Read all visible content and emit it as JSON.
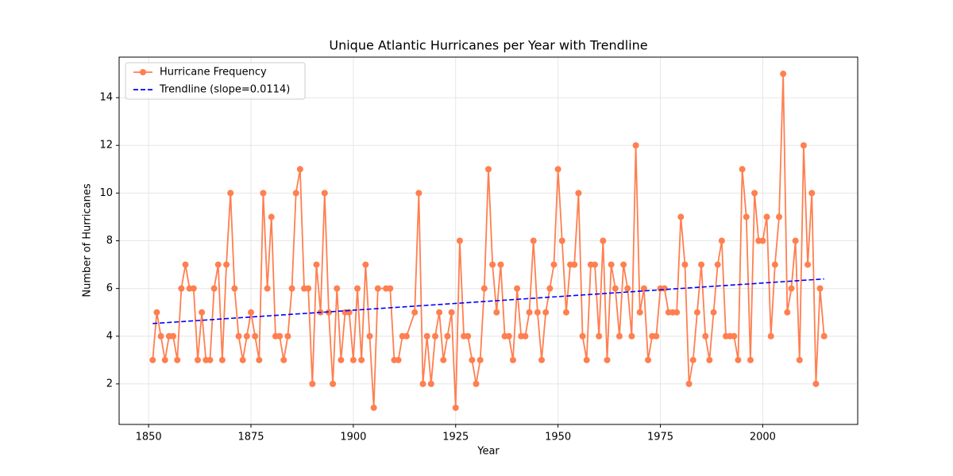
{
  "chart_data": {
    "type": "line",
    "title": "Unique Atlantic Hurricanes per Year with Trendline",
    "x_label": "Year",
    "y_label": "Number of Hurricanes",
    "series": [
      {
        "name": "Hurricane Frequency",
        "color": "#ff7f50",
        "marker": "circle",
        "style": "solid",
        "x": [
          1851,
          1852,
          1853,
          1854,
          1855,
          1856,
          1857,
          1858,
          1859,
          1860,
          1861,
          1862,
          1863,
          1864,
          1865,
          1866,
          1867,
          1868,
          1869,
          1870,
          1871,
          1872,
          1873,
          1874,
          1875,
          1876,
          1877,
          1878,
          1879,
          1880,
          1881,
          1882,
          1883,
          1884,
          1885,
          1886,
          1887,
          1888,
          1889,
          1890,
          1891,
          1892,
          1893,
          1894,
          1895,
          1896,
          1897,
          1898,
          1899,
          1900,
          1901,
          1902,
          1903,
          1904,
          1905,
          1906,
          1908,
          1909,
          1910,
          1911,
          1912,
          1913,
          1915,
          1916,
          1917,
          1918,
          1919,
          1920,
          1921,
          1922,
          1923,
          1924,
          1925,
          1926,
          1927,
          1928,
          1929,
          1930,
          1931,
          1932,
          1933,
          1934,
          1935,
          1936,
          1937,
          1938,
          1939,
          1940,
          1941,
          1942,
          1943,
          1944,
          1945,
          1946,
          1947,
          1948,
          1949,
          1950,
          1951,
          1952,
          1953,
          1954,
          1955,
          1956,
          1957,
          1958,
          1959,
          1960,
          1961,
          1962,
          1963,
          1964,
          1965,
          1966,
          1967,
          1968,
          1969,
          1970,
          1971,
          1972,
          1973,
          1974,
          1975,
          1976,
          1977,
          1978,
          1979,
          1980,
          1981,
          1982,
          1983,
          1984,
          1985,
          1986,
          1987,
          1988,
          1989,
          1990,
          1991,
          1992,
          1993,
          1994,
          1995,
          1996,
          1997,
          1998,
          1999,
          2000,
          2001,
          2002,
          2003,
          2004,
          2005,
          2006,
          2007,
          2008,
          2009,
          2010,
          2011,
          2012,
          2013,
          2014,
          2015
        ],
        "values": [
          3,
          5,
          4,
          3,
          4,
          4,
          3,
          6,
          7,
          6,
          6,
          3,
          5,
          3,
          3,
          6,
          7,
          3,
          7,
          10,
          6,
          4,
          3,
          4,
          5,
          4,
          3,
          10,
          6,
          9,
          4,
          4,
          3,
          4,
          6,
          10,
          11,
          6,
          6,
          2,
          7,
          5,
          10,
          5,
          2,
          6,
          3,
          5,
          5,
          3,
          6,
          3,
          7,
          4,
          1,
          6,
          6,
          6,
          3,
          3,
          4,
          4,
          5,
          10,
          2,
          4,
          2,
          4,
          5,
          3,
          4,
          5,
          1,
          8,
          4,
          4,
          3,
          2,
          3,
          6,
          11,
          7,
          5,
          7,
          4,
          4,
          3,
          6,
          4,
          4,
          5,
          8,
          5,
          3,
          5,
          6,
          7,
          11,
          8,
          5,
          7,
          7,
          10,
          4,
          3,
          7,
          7,
          4,
          8,
          3,
          7,
          6,
          4,
          7,
          6,
          4,
          12,
          5,
          6,
          3,
          4,
          4,
          6,
          6,
          5,
          5,
          5,
          9,
          7,
          2,
          3,
          5,
          7,
          4,
          3,
          5,
          7,
          8,
          4,
          4,
          4,
          3,
          11,
          9,
          3,
          10,
          8,
          8,
          9,
          4,
          7,
          9,
          15,
          5,
          6,
          8,
          3,
          12,
          7,
          10,
          2,
          6,
          4
        ]
      },
      {
        "name": "Trendline (slope=0.0114)",
        "color": "#0000ff",
        "marker": "none",
        "style": "dashed",
        "x": [
          1851,
          2015
        ],
        "values": [
          4.53,
          6.4
        ]
      }
    ],
    "xlim": [
      1842.8,
      2023.2
    ],
    "xticks": [
      1850,
      1875,
      1900,
      1925,
      1950,
      1975,
      2000
    ],
    "ylim": [
      0.3,
      15.7
    ],
    "yticks": [
      2,
      4,
      6,
      8,
      10,
      12,
      14
    ],
    "grid": true,
    "legend": "upper-left"
  }
}
